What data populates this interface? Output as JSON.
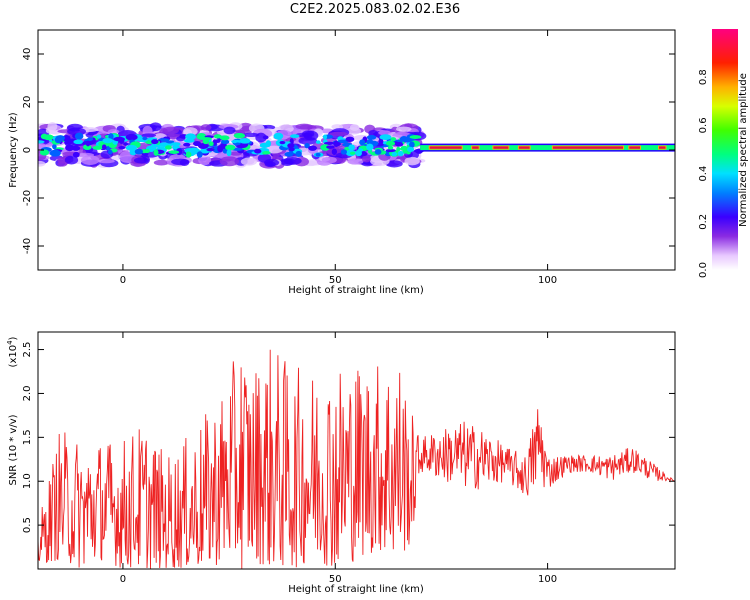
{
  "title": "C2E2.2025.083.02.02.E36",
  "colors": {
    "snr_line": "#ee2222",
    "spectro_track": "#dd1144",
    "frame": "#000000"
  },
  "chart_data": [
    {
      "type": "heatmap",
      "xlabel": "Height of straight line (km)",
      "ylabel": "Frequency (Hz)",
      "xlim": [
        -20,
        130
      ],
      "ylim": [
        -50,
        50
      ],
      "x_ticks": [
        0,
        50,
        100
      ],
      "y_ticks": [
        -40,
        -20,
        0,
        20,
        40
      ],
      "x_tick_labels": [
        "0",
        "50",
        "100"
      ],
      "y_tick_labels": [
        "-40",
        "-20",
        "0",
        "20",
        "40"
      ],
      "colorbar": {
        "label": "Normalized spectral amplitude",
        "range": [
          0.0,
          1.0
        ],
        "ticks": [
          0.0,
          0.2,
          0.4,
          0.6,
          0.8
        ],
        "tick_labels": [
          "0.0",
          "0.2",
          "0.4",
          "0.6",
          "0.8"
        ],
        "colormap": "rainbow (white-purple-blue-cyan-green-yellow-red-magenta)"
      },
      "features": {
        "noisy_band": {
          "x_range": [
            -20,
            70
          ],
          "freq_center": 2,
          "freq_spread": 8,
          "amplitude_peak": 0.5
        },
        "stable_line": {
          "x_range": [
            70,
            130
          ],
          "freq": 1,
          "amplitude_peak": 0.9
        }
      }
    },
    {
      "type": "line",
      "xlabel": "Height of straight line (km)",
      "ylabel": "SNR (10 * v/v)",
      "y_multiplier": "(x10",
      "y_multiplier_exp": "4",
      "xlim": [
        -20,
        130
      ],
      "ylim": [
        0.0,
        2.7
      ],
      "x_ticks": [
        0,
        50,
        100
      ],
      "y_ticks": [
        0.5,
        1.0,
        1.5,
        2.0,
        2.5
      ],
      "x_tick_labels": [
        "0",
        "50",
        "100"
      ],
      "y_tick_labels": [
        "0.5",
        "1.0",
        "1.5",
        "2.0",
        "2.5"
      ],
      "series": [
        {
          "x": [
            -20,
            -15,
            -10,
            -5,
            0,
            5,
            10,
            15,
            20,
            25,
            28,
            30,
            35,
            40,
            45,
            50,
            55,
            60,
            65,
            68,
            70,
            75,
            80,
            85,
            90,
            95,
            98,
            100,
            105,
            110,
            115,
            120,
            125,
            130
          ],
          "y_min": [
            0.05,
            0.1,
            0.0,
            0.1,
            0.0,
            0.0,
            0.0,
            0.0,
            0.0,
            0.1,
            0.0,
            0.1,
            0.0,
            0.0,
            0.1,
            0.0,
            0.1,
            0.2,
            0.1,
            0.3,
            1.1,
            1.0,
            0.9,
            0.9,
            1.0,
            0.8,
            0.9,
            0.9,
            1.1,
            1.1,
            1.0,
            1.1,
            1.0,
            1.0
          ],
          "y_max": [
            0.5,
            1.6,
            1.5,
            1.5,
            1.5,
            1.7,
            1.3,
            1.5,
            1.8,
            2.2,
            2.7,
            2.3,
            2.6,
            2.3,
            2.3,
            2.4,
            2.4,
            2.4,
            2.5,
            1.8,
            1.5,
            1.6,
            1.7,
            1.6,
            1.4,
            1.3,
            2.0,
            1.3,
            1.3,
            1.3,
            1.3,
            1.4,
            1.2,
            1.0
          ]
        }
      ]
    }
  ]
}
